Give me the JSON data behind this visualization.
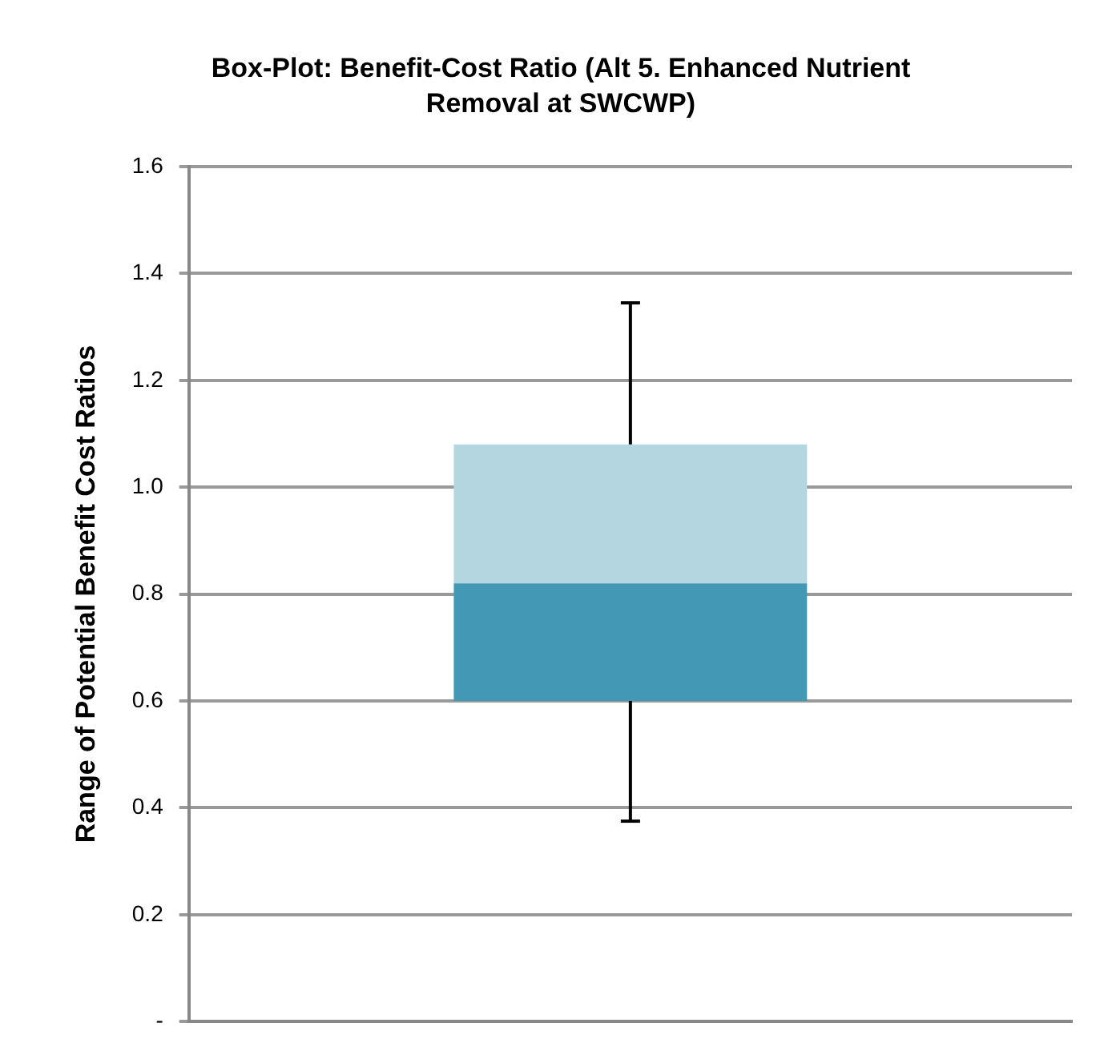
{
  "chart_data": {
    "type": "box",
    "title": "Box-Plot: Benefit-Cost Ratio (Alt 5. Enhanced Nutrient Removal at SWCWP)",
    "ylabel": "Range of Potential Benefit Cost Ratios",
    "categories": [
      null
    ],
    "series": [
      {
        "color": "#4398b5",
        "boxes": [
          {
            "low": 0.375,
            "q1": 0.6,
            "median": 0.82,
            "q3": 1.08,
            "high": 1.345
          }
        ]
      }
    ],
    "ylim": [
      0,
      1.6
    ],
    "yticks": [
      {
        "value": 0,
        "label": "-"
      },
      0.2,
      0.4,
      0.6,
      0.8,
      {
        "value": 1,
        "label": "1.0"
      },
      1.2,
      1.4,
      1.6
    ],
    "grid": "y"
  }
}
